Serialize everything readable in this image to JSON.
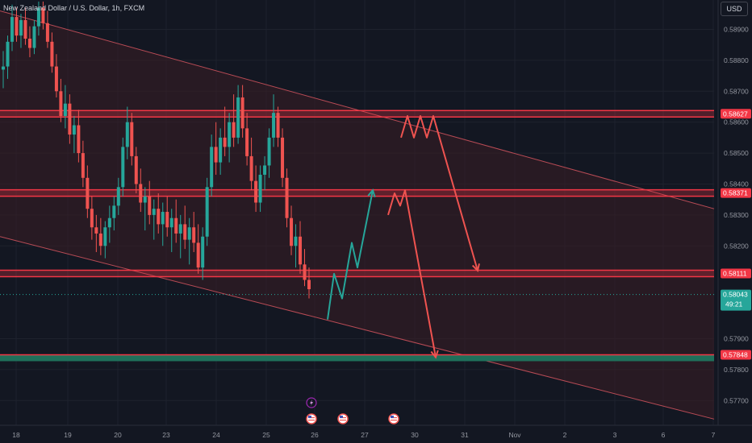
{
  "header": {
    "symbol_title": "New Zealand Dollar / U.S. Dollar, 1h, FXCM",
    "currency_label": "USD"
  },
  "countdown": "49:21",
  "colors": {
    "background": "#131722",
    "bull": "#26a69a",
    "bear": "#ef5350",
    "zone": "#f23645",
    "channel_fill": "#3a1d24",
    "support_zone": "#1f6f5a",
    "grid": "#1e222d"
  },
  "chart_data": {
    "type": "candlestick",
    "title": "",
    "ylim": [
      0.5762,
      0.58995
    ],
    "y_ticks": [
      "0.58900",
      "0.58800",
      "0.58700",
      "0.58600",
      "0.58500",
      "0.58400",
      "0.58300",
      "0.58200",
      "0.57900",
      "0.57800",
      "0.57700"
    ],
    "x_ticks": [
      "18",
      "19",
      "20",
      "23",
      "24",
      "25",
      "26",
      "27",
      "30",
      "31",
      "Nov",
      "2",
      "3",
      "6",
      "7"
    ],
    "price_labels": [
      {
        "label": "0.58627",
        "kind": "zone"
      },
      {
        "label": "0.58371",
        "kind": "zone"
      },
      {
        "label": "0.58111",
        "kind": "zone"
      },
      {
        "label": "0.58043",
        "kind": "last"
      },
      {
        "label": "0.57848",
        "kind": "zone"
      }
    ],
    "horizontal_zones": [
      {
        "level": 0.58627,
        "name": "resistance-upper"
      },
      {
        "level": 0.58371,
        "name": "resistance-mid"
      },
      {
        "level": 0.58111,
        "name": "support-upper"
      },
      {
        "level": 0.57848,
        "name": "support-lower"
      }
    ],
    "last_price": 0.58043,
    "channel": {
      "upper": [
        {
          "x": "18",
          "y": 0.5896
        },
        {
          "x": "7",
          "y": 0.5832
        }
      ],
      "lower": [
        {
          "x": "18",
          "y": 0.5823
        },
        {
          "x": "7",
          "y": 0.5764
        }
      ]
    },
    "projections": [
      {
        "name": "bullish-path",
        "color": "#26a69a",
        "points": [
          0.57962,
          0.5811,
          0.5803,
          0.5821,
          0.5813,
          0.5838
        ]
      },
      {
        "name": "bearish-path-a",
        "color": "#ef5350",
        "points": [
          0.5855,
          0.5862,
          0.5855,
          0.5862,
          0.5855,
          0.5862,
          0.5812
        ]
      },
      {
        "name": "bearish-path-b",
        "color": "#ef5350",
        "points": [
          0.583,
          0.5837,
          0.5833,
          0.5838,
          0.5784
        ]
      }
    ],
    "event_icons": [
      "lightning-icon",
      "us-flag-icon",
      "us-flag-icon",
      "us-flag-icon"
    ],
    "candles": [
      [
        0.5877,
        0.5883,
        0.5871,
        0.5878
      ],
      [
        0.5878,
        0.5888,
        0.5874,
        0.5886
      ],
      [
        0.5886,
        0.5898,
        0.5883,
        0.5894
      ],
      [
        0.5894,
        0.5897,
        0.5886,
        0.5888
      ],
      [
        0.5888,
        0.5895,
        0.5884,
        0.5893
      ],
      [
        0.5893,
        0.5897,
        0.5885,
        0.5887
      ],
      [
        0.5887,
        0.5891,
        0.5881,
        0.5884
      ],
      [
        0.5884,
        0.5893,
        0.5882,
        0.5891
      ],
      [
        0.5891,
        0.5899,
        0.5888,
        0.5897
      ],
      [
        0.5897,
        0.5899,
        0.589,
        0.5892
      ],
      [
        0.5892,
        0.5896,
        0.5884,
        0.5886
      ],
      [
        0.5886,
        0.5889,
        0.5876,
        0.5878
      ],
      [
        0.5878,
        0.5882,
        0.5868,
        0.587
      ],
      [
        0.587,
        0.5874,
        0.586,
        0.5862
      ],
      [
        0.5862,
        0.5872,
        0.5858,
        0.5866
      ],
      [
        0.5866,
        0.5869,
        0.5853,
        0.5856
      ],
      [
        0.5856,
        0.5862,
        0.585,
        0.5859
      ],
      [
        0.5859,
        0.5864,
        0.5847,
        0.585
      ],
      [
        0.585,
        0.5854,
        0.5839,
        0.5842
      ],
      [
        0.5842,
        0.5846,
        0.5829,
        0.5832
      ],
      [
        0.5832,
        0.5836,
        0.5822,
        0.5826
      ],
      [
        0.5826,
        0.583,
        0.5818,
        0.5824
      ],
      [
        0.5824,
        0.5829,
        0.5817,
        0.582
      ],
      [
        0.582,
        0.5828,
        0.5816,
        0.5826
      ],
      [
        0.5826,
        0.5833,
        0.5821,
        0.5829
      ],
      [
        0.5829,
        0.5836,
        0.5825,
        0.5833
      ],
      [
        0.5833,
        0.5842,
        0.583,
        0.5839
      ],
      [
        0.5839,
        0.5855,
        0.5836,
        0.5852
      ],
      [
        0.5852,
        0.5865,
        0.5848,
        0.586
      ],
      [
        0.586,
        0.5863,
        0.5846,
        0.5849
      ],
      [
        0.5849,
        0.5852,
        0.5837,
        0.584
      ],
      [
        0.584,
        0.5845,
        0.5831,
        0.5834
      ],
      [
        0.5834,
        0.5839,
        0.5825,
        0.5836
      ],
      [
        0.5836,
        0.5841,
        0.5827,
        0.583
      ],
      [
        0.583,
        0.5835,
        0.5822,
        0.5832
      ],
      [
        0.5832,
        0.5837,
        0.5824,
        0.5827
      ],
      [
        0.5827,
        0.5834,
        0.582,
        0.5831
      ],
      [
        0.5831,
        0.5836,
        0.5823,
        0.5826
      ],
      [
        0.5826,
        0.5832,
        0.5818,
        0.5829
      ],
      [
        0.5829,
        0.5835,
        0.5821,
        0.5824
      ],
      [
        0.5824,
        0.583,
        0.5816,
        0.5827
      ],
      [
        0.5827,
        0.5833,
        0.5819,
        0.5822
      ],
      [
        0.5822,
        0.5829,
        0.5814,
        0.5826
      ],
      [
        0.5826,
        0.5831,
        0.5818,
        0.5821
      ],
      [
        0.5821,
        0.5827,
        0.5811,
        0.5813
      ],
      [
        0.5813,
        0.5826,
        0.5809,
        0.5823
      ],
      [
        0.5823,
        0.5842,
        0.582,
        0.5839
      ],
      [
        0.5839,
        0.5856,
        0.5836,
        0.5852
      ],
      [
        0.5852,
        0.586,
        0.5843,
        0.5847
      ],
      [
        0.5847,
        0.5858,
        0.5843,
        0.5855
      ],
      [
        0.5855,
        0.5865,
        0.5849,
        0.5852
      ],
      [
        0.5852,
        0.5863,
        0.5847,
        0.586
      ],
      [
        0.586,
        0.5869,
        0.5852,
        0.5855
      ],
      [
        0.5855,
        0.5872,
        0.5853,
        0.5868
      ],
      [
        0.5868,
        0.5872,
        0.5855,
        0.5858
      ],
      [
        0.5858,
        0.5863,
        0.5846,
        0.5849
      ],
      [
        0.5849,
        0.5855,
        0.5838,
        0.5841
      ],
      [
        0.5841,
        0.5846,
        0.5831,
        0.5834
      ],
      [
        0.5834,
        0.5846,
        0.5831,
        0.5843
      ],
      [
        0.5843,
        0.5849,
        0.5838,
        0.5846
      ],
      [
        0.5846,
        0.5858,
        0.5842,
        0.5855
      ],
      [
        0.5855,
        0.5869,
        0.5852,
        0.5863
      ],
      [
        0.5863,
        0.5865,
        0.5852,
        0.5855
      ],
      [
        0.5855,
        0.5858,
        0.5839,
        0.5842
      ],
      [
        0.5842,
        0.5845,
        0.5826,
        0.5829
      ],
      [
        0.5829,
        0.5833,
        0.5817,
        0.582
      ],
      [
        0.582,
        0.5827,
        0.5813,
        0.5823
      ],
      [
        0.5823,
        0.5828,
        0.5811,
        0.5814
      ],
      [
        0.5814,
        0.5819,
        0.5807,
        0.5809
      ],
      [
        0.5809,
        0.5813,
        0.5803,
        0.5806
      ]
    ]
  }
}
